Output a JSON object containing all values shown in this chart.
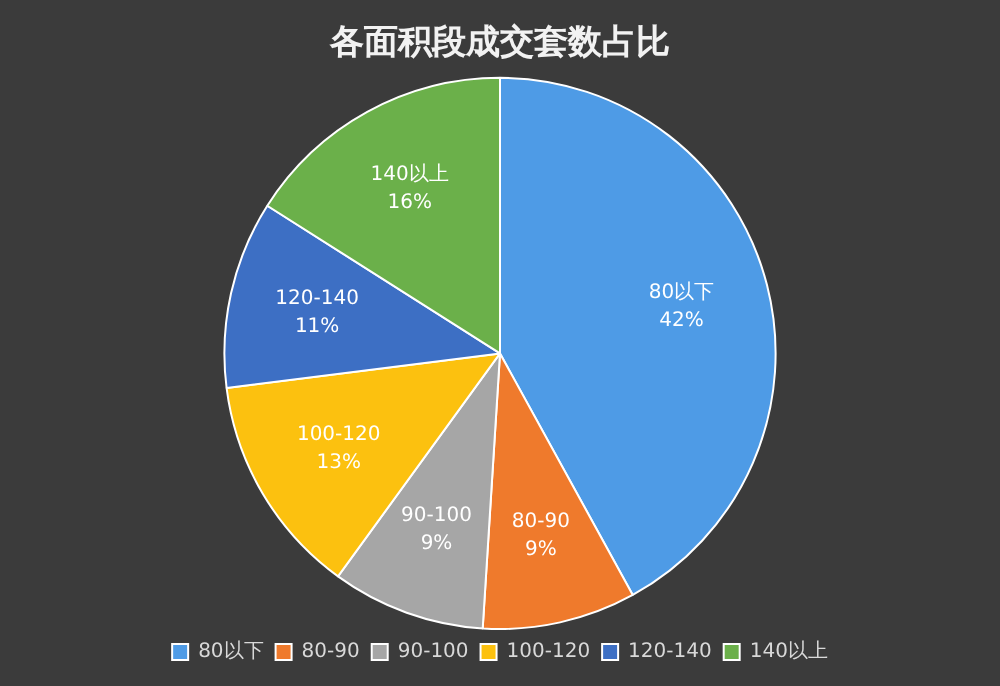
{
  "chart_data": {
    "type": "pie",
    "title": "各面积段成交套数占比",
    "categories": [
      "80以下",
      "80-90",
      "90-100",
      "100-120",
      "120-140",
      "140以上"
    ],
    "values": [
      42,
      9,
      9,
      13,
      11,
      16
    ],
    "value_labels": [
      "42%",
      "9%",
      "9%",
      "13%",
      "11%",
      "16%"
    ],
    "colors": [
      "#4e9be6",
      "#ef7a2c",
      "#a6a6a6",
      "#fcc10f",
      "#3d6fc4",
      "#6bb04a"
    ],
    "legend": "bottom"
  }
}
